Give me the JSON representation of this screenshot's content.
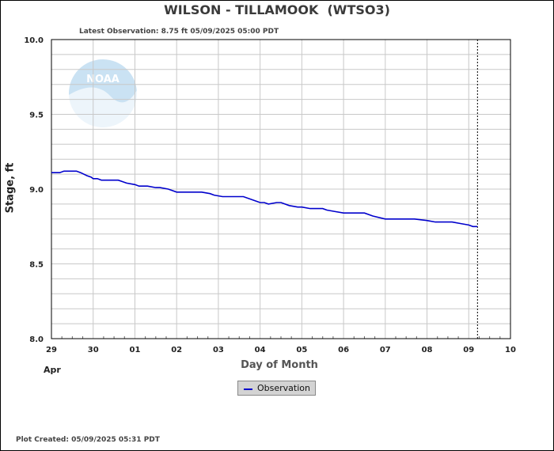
{
  "header": {
    "title": "WILSON - TILLAMOOK  (WTSO3)",
    "latest_observation": "Latest Observation: 8.75 ft 05/09/2025 05:00 PDT"
  },
  "footer": {
    "plot_created": "Plot Created: 05/09/2025 05:31 PDT"
  },
  "colors": {
    "series": "#0000cc",
    "grid": "#c8c8c8",
    "watermark": "#9ecbea"
  },
  "watermark": {
    "text": "NOAA",
    "icon": "noaa-logo"
  },
  "chart_data": {
    "type": "line",
    "xlabel": "Day of Month",
    "ylabel": "Stage, ft",
    "month_label": "Apr",
    "x_tick_labels": [
      "29",
      "30",
      "01",
      "02",
      "03",
      "04",
      "05",
      "06",
      "07",
      "08",
      "09",
      "10"
    ],
    "xlim": [
      0,
      11
    ],
    "ylim": [
      8.0,
      10.0
    ],
    "y_ticks": [
      "10.0",
      "9.5",
      "9.0",
      "8.5",
      "8.0"
    ],
    "y_tick_values": [
      10.0,
      9.5,
      9.0,
      8.5,
      8.0
    ],
    "grid": true,
    "legend_position": "bottom-center",
    "current_time_marker_x": 10.21,
    "series": [
      {
        "name": "Observation",
        "x": [
          0.0,
          0.2,
          0.3,
          0.6,
          0.7,
          0.85,
          0.95,
          1.0,
          1.1,
          1.2,
          1.4,
          1.6,
          1.7,
          1.8,
          2.0,
          2.1,
          2.3,
          2.5,
          2.6,
          2.8,
          2.9,
          3.0,
          3.1,
          3.4,
          3.6,
          3.8,
          3.9,
          4.1,
          4.3,
          4.6,
          4.9,
          5.0,
          5.1,
          5.2,
          5.4,
          5.5,
          5.7,
          5.9,
          6.0,
          6.2,
          6.3,
          6.5,
          6.6,
          6.8,
          7.0,
          7.1,
          7.2,
          7.5,
          7.7,
          8.0,
          8.3,
          8.5,
          8.7,
          9.0,
          9.2,
          9.4,
          9.6,
          9.8,
          10.0,
          10.1,
          10.21
        ],
        "y": [
          9.11,
          9.11,
          9.12,
          9.12,
          9.11,
          9.09,
          9.08,
          9.07,
          9.07,
          9.06,
          9.06,
          9.06,
          9.05,
          9.04,
          9.03,
          9.02,
          9.02,
          9.01,
          9.01,
          9.0,
          8.99,
          8.98,
          8.98,
          8.98,
          8.98,
          8.97,
          8.96,
          8.95,
          8.95,
          8.95,
          8.92,
          8.91,
          8.91,
          8.9,
          8.91,
          8.91,
          8.89,
          8.88,
          8.88,
          8.87,
          8.87,
          8.87,
          8.86,
          8.85,
          8.84,
          8.84,
          8.84,
          8.84,
          8.82,
          8.8,
          8.8,
          8.8,
          8.8,
          8.79,
          8.78,
          8.78,
          8.78,
          8.77,
          8.76,
          8.75,
          8.75
        ]
      }
    ]
  }
}
